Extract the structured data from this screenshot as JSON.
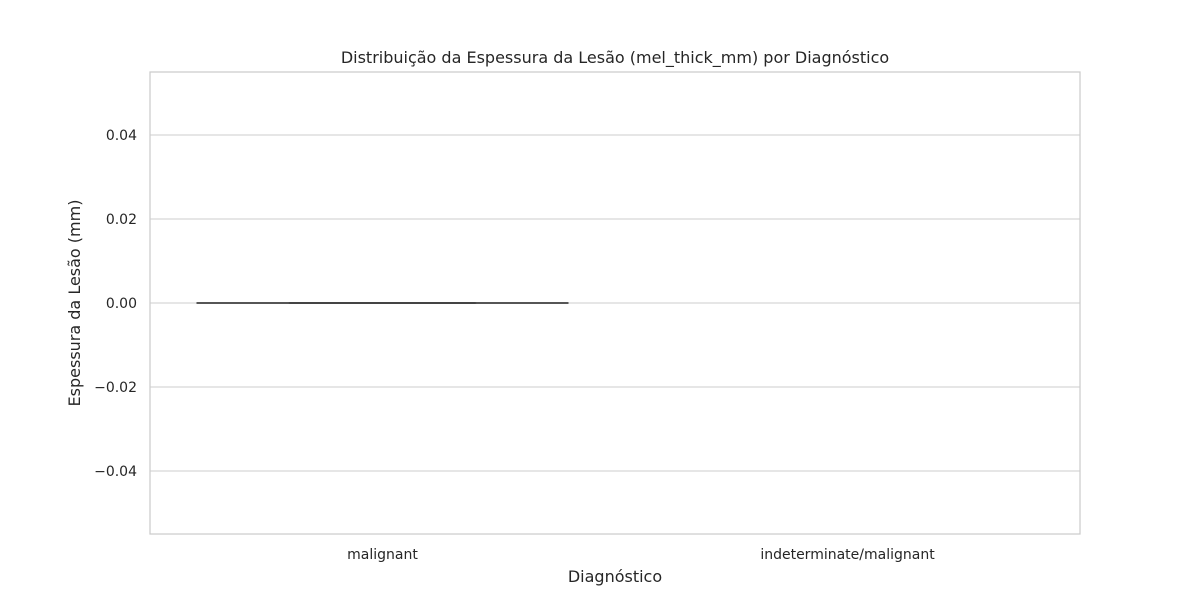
{
  "chart_data": {
    "type": "box",
    "title": "Distribuição da Espessura da Lesão (mel_thick_mm) por Diagnóstico",
    "xlabel": "Diagnóstico",
    "ylabel": "Espessura da Lesão (mm)",
    "categories": [
      "malignant",
      "indeterminate/malignant"
    ],
    "boxes": [
      {
        "category": "malignant",
        "min": 0.0,
        "q1": 0.0,
        "median": 0.0,
        "q3": 0.0,
        "max": 0.0
      },
      {
        "category": "indeterminate/malignant",
        "min": null,
        "q1": null,
        "median": null,
        "q3": null,
        "max": null
      }
    ],
    "ylim": [
      -0.055,
      0.055
    ],
    "yticks": [
      -0.04,
      -0.02,
      0.0,
      0.02,
      0.04
    ],
    "ytick_labels": [
      "−0.04",
      "−0.02",
      "0.00",
      "0.02",
      "0.04"
    ],
    "grid": "horizontal",
    "colors": {
      "grid": "#cccccc",
      "frame": "#cccccc",
      "box_line": "#3f3f3f",
      "text": "#262626"
    }
  }
}
